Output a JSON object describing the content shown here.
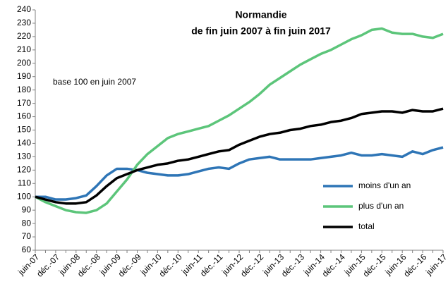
{
  "chart_data": {
    "type": "line",
    "title": "Normandie",
    "subtitle": "de fin juin 2007  à fin juin 2017",
    "annotation": "base 100 en  juin 2007",
    "categories": [
      "juin-07",
      null,
      "déc.-07",
      null,
      "juin-08",
      null,
      "déc.-08",
      null,
      "juin-09",
      null,
      "déc.-09",
      null,
      "juin-10",
      null,
      "déc.-10",
      null,
      "juin-11",
      null,
      "déc.-11",
      null,
      "juin-12",
      null,
      "déc.-12",
      null,
      "juin-13",
      null,
      "déc.-13",
      null,
      "juin-14",
      null,
      "déc.-14",
      null,
      "juin-15",
      null,
      "déc.-15",
      null,
      "juin-16",
      null,
      "déc.-16",
      null,
      "juin-17"
    ],
    "series": [
      {
        "name": "moins d'un an",
        "color": "#2e75b6",
        "values": [
          100,
          100,
          98,
          98,
          99,
          101,
          108,
          116,
          121,
          121,
          120,
          118,
          117,
          116,
          116,
          117,
          119,
          121,
          122,
          121,
          125,
          128,
          129,
          130,
          128,
          128,
          128,
          128,
          129,
          130,
          131,
          133,
          131,
          131,
          132,
          131,
          130,
          134,
          132,
          135,
          137
        ]
      },
      {
        "name": "plus d'un an",
        "color": "#5cc57a",
        "values": [
          100,
          96,
          93,
          90,
          88.5,
          88,
          90,
          95,
          104,
          113,
          124,
          132,
          138,
          144,
          147,
          149,
          151,
          153,
          157,
          161,
          166,
          171,
          177,
          184,
          189,
          194,
          199,
          203,
          207,
          210,
          214,
          218,
          221,
          225,
          226,
          223,
          222,
          222,
          220,
          219,
          222
        ]
      },
      {
        "name": "total",
        "color": "#000000",
        "values": [
          100,
          98,
          96,
          95,
          95,
          96,
          101,
          108,
          114,
          117,
          120,
          122,
          124,
          125,
          127,
          128,
          130,
          132,
          134,
          135,
          139,
          142,
          145,
          147,
          148,
          150,
          151,
          153,
          154,
          156,
          157,
          159,
          162,
          163,
          164,
          164,
          163,
          165,
          164,
          164,
          166
        ]
      }
    ],
    "ylim": [
      60,
      240
    ],
    "yticks": [
      60,
      70,
      80,
      90,
      100,
      110,
      120,
      130,
      140,
      150,
      160,
      170,
      180,
      190,
      200,
      210,
      220,
      230,
      240
    ],
    "grid": false,
    "legend": "right"
  }
}
